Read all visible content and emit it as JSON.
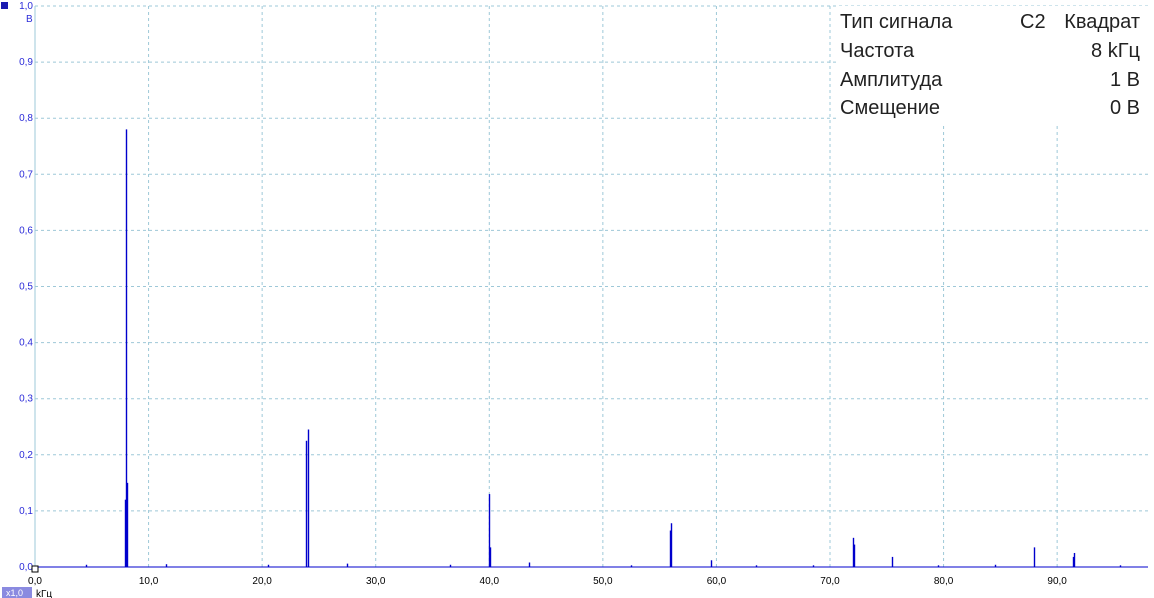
{
  "colors": {
    "signal": "#0000cc",
    "axis_tick_y": "#2b2bd9",
    "grid": "#9ec8d8",
    "channel_marker": "#1a1ab0",
    "scale_badge": "#8a8ae0"
  },
  "info": {
    "signal_type_label": "Тип сигнала",
    "channel": "C2",
    "signal_type_value": "Квадрат",
    "frequency_label": "Частота",
    "frequency_value": "8 kГц",
    "amplitude_label": "Амплитуда",
    "amplitude_value": "1 В",
    "offset_label": "Смещение",
    "offset_value": "0 В"
  },
  "scale_badge": "x1,0",
  "chart_data": {
    "type": "bar",
    "xlabel": "kГц",
    "ylabel": "В",
    "xlim": [
      0,
      98
    ],
    "ylim": [
      0,
      1.0
    ],
    "grid": true,
    "x_ticks": [
      "0,0",
      "10,0",
      "20,0",
      "30,0",
      "40,0",
      "50,0",
      "60,0",
      "70,0",
      "80,0",
      "90,0"
    ],
    "y_ticks": [
      "0,0",
      "0,1",
      "0,2",
      "0,3",
      "0,4",
      "0,5",
      "0,6",
      "0,7",
      "0,8",
      "0,9",
      "1,0"
    ],
    "series": [
      {
        "peaks": [
          {
            "x": 8.0,
            "y": 0.78
          },
          {
            "x": 8.1,
            "y": 0.15
          },
          {
            "x": 7.9,
            "y": 0.12
          },
          {
            "x": 24.0,
            "y": 0.245
          },
          {
            "x": 23.9,
            "y": 0.225
          },
          {
            "x": 40.0,
            "y": 0.13
          },
          {
            "x": 40.1,
            "y": 0.035
          },
          {
            "x": 56.0,
            "y": 0.078
          },
          {
            "x": 55.9,
            "y": 0.065
          },
          {
            "x": 59.5,
            "y": 0.012
          },
          {
            "x": 72.0,
            "y": 0.052
          },
          {
            "x": 72.1,
            "y": 0.04
          },
          {
            "x": 75.5,
            "y": 0.018
          },
          {
            "x": 88.0,
            "y": 0.035
          },
          {
            "x": 91.5,
            "y": 0.025
          },
          {
            "x": 91.4,
            "y": 0.018
          },
          {
            "x": 27.5,
            "y": 0.006
          },
          {
            "x": 43.5,
            "y": 0.008
          },
          {
            "x": 11.5,
            "y": 0.005
          },
          {
            "x": 4.5,
            "y": 0.004
          },
          {
            "x": 20.5,
            "y": 0.004
          },
          {
            "x": 36.5,
            "y": 0.004
          },
          {
            "x": 52.5,
            "y": 0.003
          },
          {
            "x": 63.5,
            "y": 0.003
          },
          {
            "x": 68.5,
            "y": 0.003
          },
          {
            "x": 79.5,
            "y": 0.003
          },
          {
            "x": 84.5,
            "y": 0.004
          },
          {
            "x": 95.5,
            "y": 0.003
          }
        ]
      }
    ]
  }
}
